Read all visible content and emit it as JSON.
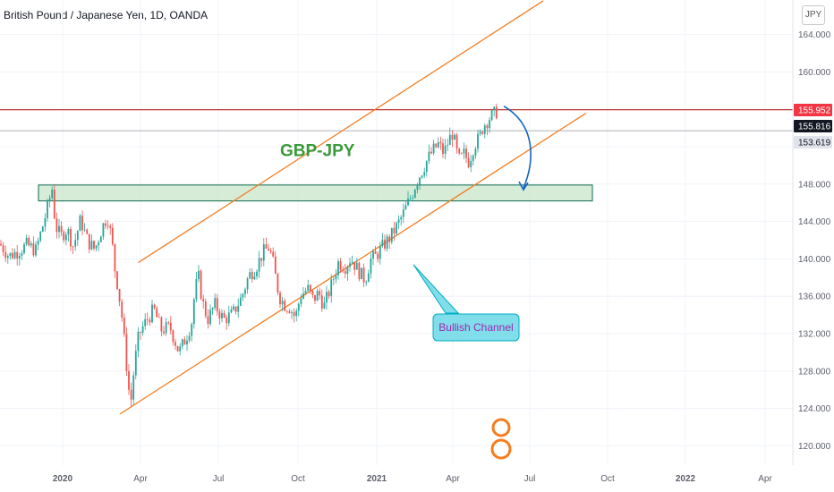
{
  "header": {
    "title": "British Pound / Japanese Yen, 1D, OANDA",
    "currency": "JPY"
  },
  "annotations": {
    "pair_label": "GBP-JPY",
    "pair_label_color": "#3a9a3a",
    "callout_text": "Bullish Channel",
    "callout_text_color": "#9c27b0",
    "callout_fill": "#80deea"
  },
  "colors": {
    "up": "#26a69a",
    "down": "#ef5350",
    "channel": "#f57c1f",
    "zone_fill": "#c8e6c9",
    "zone_border": "#0e6b4e",
    "arrow": "#1565c0",
    "resistance": "#b71c1c",
    "current_line": "#2f3a4f"
  },
  "chart_data": {
    "type": "candlestick",
    "title": "British Pound / Japanese Yen, 1D, OANDA",
    "y_axis_ticks": [
      164,
      160,
      156,
      152,
      148,
      144,
      140,
      136,
      132,
      128,
      124,
      120
    ],
    "y_tick_labels": [
      "164.000",
      "160.000",
      "",
      "",
      "148.000",
      "144.000",
      "140.000",
      "136.000",
      "132.000",
      "128.000",
      "124.000",
      "120.000"
    ],
    "x_tick_labels": [
      "2020",
      "Apr",
      "Jul",
      "Oct",
      "2021",
      "Apr",
      "Jul",
      "Oct",
      "2022",
      "Apr"
    ],
    "ylim": [
      118.5,
      167
    ],
    "price_labels": [
      {
        "value": 155.952,
        "label": "155.952",
        "style": "red"
      },
      {
        "value": 155.816,
        "label": "155.816",
        "style": "dark"
      },
      {
        "value": 153.619,
        "label": "153.619",
        "style": "grey"
      }
    ],
    "resistance_level": 155.952,
    "support_zone": [
      146.2,
      147.9
    ],
    "channel_upper": [
      [
        154.5,
        139.6
      ],
      [
        607,
        167.6
      ]
    ],
    "channel_lower": [
      [
        134,
        123.4
      ],
      [
        655,
        155.6
      ]
    ],
    "price_path": [
      [
        0,
        141.6
      ],
      [
        10,
        140.3
      ],
      [
        20,
        140.8
      ],
      [
        30,
        141.5
      ],
      [
        40,
        140.9
      ],
      [
        48,
        143.6
      ],
      [
        55,
        146.2
      ],
      [
        58,
        147.7
      ],
      [
        62,
        143.5
      ],
      [
        68,
        142.4
      ],
      [
        75,
        143.2
      ],
      [
        82,
        141.3
      ],
      [
        90,
        144.2
      ],
      [
        98,
        141.9
      ],
      [
        106,
        141.0
      ],
      [
        114,
        143.3
      ],
      [
        120,
        144.6
      ],
      [
        125,
        142.0
      ],
      [
        128,
        139.1
      ],
      [
        132,
        136.9
      ],
      [
        136,
        134.0
      ],
      [
        140,
        130.2
      ],
      [
        143,
        126.8
      ],
      [
        146,
        124.4
      ],
      [
        150,
        128.5
      ],
      [
        155,
        131.8
      ],
      [
        160,
        132.8
      ],
      [
        165,
        133.6
      ],
      [
        172,
        134.6
      ],
      [
        180,
        132.4
      ],
      [
        190,
        132.7
      ],
      [
        200,
        130.0
      ],
      [
        208,
        131.6
      ],
      [
        214,
        133.1
      ],
      [
        218,
        136.8
      ],
      [
        222,
        138.0
      ],
      [
        226,
        135.5
      ],
      [
        232,
        133.5
      ],
      [
        240,
        135.1
      ],
      [
        250,
        133.5
      ],
      [
        260,
        134.1
      ],
      [
        270,
        135.9
      ],
      [
        278,
        138.2
      ],
      [
        286,
        139.1
      ],
      [
        294,
        140.7
      ],
      [
        300,
        141.2
      ],
      [
        304,
        140.2
      ],
      [
        308,
        138.0
      ],
      [
        312,
        136.0
      ],
      [
        318,
        135.1
      ],
      [
        324,
        134.8
      ],
      [
        330,
        133.7
      ],
      [
        336,
        136.1
      ],
      [
        344,
        136.8
      ],
      [
        350,
        135.6
      ],
      [
        356,
        136.4
      ],
      [
        362,
        134.9
      ],
      [
        370,
        137.1
      ],
      [
        378,
        139.6
      ],
      [
        386,
        139.2
      ],
      [
        392,
        140.1
      ],
      [
        400,
        138.8
      ],
      [
        408,
        137.7
      ],
      [
        414,
        139.9
      ],
      [
        420,
        140.3
      ],
      [
        428,
        141.4
      ],
      [
        436,
        142.3
      ],
      [
        444,
        143.6
      ],
      [
        450,
        144.7
      ],
      [
        456,
        146.0
      ],
      [
        460,
        146.8
      ],
      [
        466,
        148.4
      ],
      [
        472,
        149.5
      ],
      [
        478,
        150.7
      ],
      [
        484,
        151.6
      ],
      [
        490,
        152.3
      ],
      [
        496,
        151.3
      ],
      [
        502,
        152.8
      ],
      [
        506,
        153.5
      ],
      [
        510,
        151.5
      ],
      [
        514,
        150.4
      ],
      [
        518,
        151.3
      ],
      [
        524,
        150.4
      ],
      [
        530,
        152.2
      ],
      [
        536,
        153.0
      ],
      [
        540,
        154.2
      ],
      [
        546,
        155.0
      ],
      [
        552,
        155.5
      ],
      [
        556,
        155.8
      ]
    ]
  }
}
